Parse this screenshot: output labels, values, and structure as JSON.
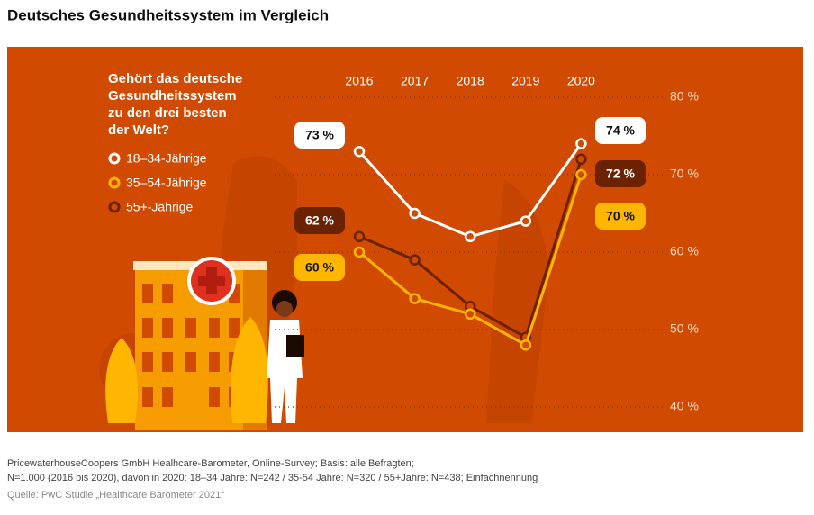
{
  "chart_data": {
    "type": "line",
    "title": "Deutsches Gesundheitssystem im Vergleich",
    "question": [
      "Gehört das deutsche",
      "Gesundheitssystem",
      "zu den drei besten",
      "der Welt?"
    ],
    "categories": [
      "2016",
      "2017",
      "2018",
      "2019",
      "2020"
    ],
    "series": [
      {
        "name": "18–34-Jährige",
        "color": "#ffffff",
        "values": [
          73,
          65,
          62,
          64,
          74
        ],
        "value_labels": [
          "73 %",
          null,
          null,
          null,
          "74 %"
        ]
      },
      {
        "name": "35–54-Jährige",
        "color": "#ffb600",
        "values": [
          60,
          54,
          52,
          48,
          70
        ],
        "value_labels": [
          "60 %",
          null,
          null,
          null,
          "70 %"
        ]
      },
      {
        "name": "55+-Jährige",
        "color": "#6b2200",
        "values": [
          62,
          59,
          53,
          49,
          72
        ],
        "value_labels": [
          "62 %",
          null,
          null,
          null,
          "72 %"
        ]
      }
    ],
    "ylim": [
      40,
      80
    ],
    "yticks": [
      {
        "value": 80,
        "label": "80 %"
      },
      {
        "value": 70,
        "label": "70 %"
      },
      {
        "value": 60,
        "label": "60 %"
      },
      {
        "value": 50,
        "label": "50 %"
      },
      {
        "value": 40,
        "label": "40 %"
      }
    ],
    "grid": true,
    "footnotes": [
      "PricewaterhouseCoopers GmbH Healhcare-Barometer, Online-Survey; Basis: alle Befragten;",
      "N=1.000 (2016 bis 2020), davon in 2020: 18–34 Jahre: N=242 / 35-54 Jahre: N=320 / 55+Jahre: N=438; Einfachnennung"
    ],
    "source": "Quelle: PwC Studie „Healthcare Barometer 2021“"
  }
}
